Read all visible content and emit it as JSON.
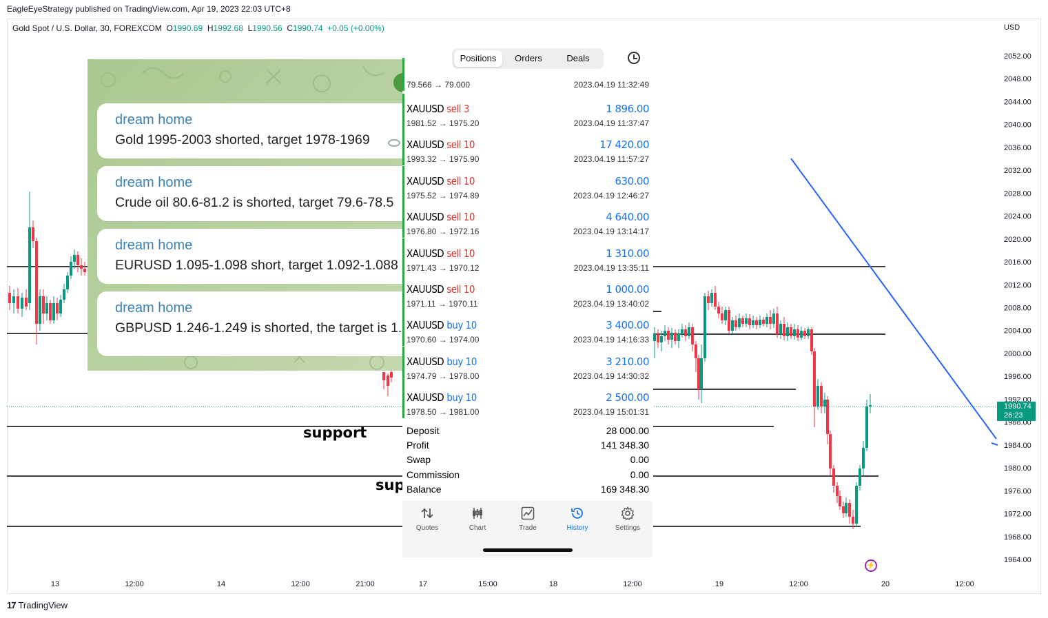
{
  "publish_note": "EagleEyeStrategy published on TradingView.com, Apr 19, 2023 22:03 UTC+8",
  "symbol": {
    "name": "Gold Spot / U.S. Dollar, 30, FOREXCOM",
    "o_label": "O",
    "o": "1990.69",
    "h_label": "H",
    "h": "1992.68",
    "l_label": "L",
    "l": "1990.56",
    "c_label": "C",
    "c": "1990.74",
    "change": "+0.05 (+0.00%)"
  },
  "currency": "USD",
  "price_axis": [
    "2052.00",
    "2048.00",
    "2044.00",
    "2040.00",
    "2036.00",
    "2032.00",
    "2028.00",
    "2024.00",
    "2020.00",
    "2016.00",
    "2012.00",
    "2008.00",
    "2004.00",
    "2000.00",
    "1996.00",
    "1992.00",
    "1988.00",
    "1984.00",
    "1980.00",
    "1976.00",
    "1972.00",
    "1968.00",
    "1964.00"
  ],
  "time_axis": [
    "13",
    "12:00",
    "14",
    "12:00",
    "21:00",
    "17",
    "15:00",
    "18",
    "12:00",
    "19",
    "12:00",
    "20",
    "12:00"
  ],
  "last_price": {
    "price": "1990.74",
    "countdown": "26:23"
  },
  "annotations": {
    "support_1": "support",
    "support_2": "sup"
  },
  "branding": {
    "logo_text": "TradingView",
    "logo_mark": "17"
  },
  "telegram": {
    "messages": [
      {
        "sender": "dream home",
        "text": "Gold 1995-2003 shorted, target 1978-1969"
      },
      {
        "sender": "dream home",
        "text": "Crude oil 80.6-81.2 is shorted, target 79.6-78.5"
      },
      {
        "sender": "dream home",
        "text": "EURUSD 1.095-1.098 short, target 1.092-1.088"
      },
      {
        "sender": "dream home",
        "text": "GBPUSD 1.246-1.249 is shorted, the target is 1."
      }
    ]
  },
  "mt5": {
    "tabs": [
      "Positions",
      "Orders",
      "Deals"
    ],
    "active_tab": "Positions",
    "partial_row": {
      "prices": "79.566 → 79.000",
      "time": "2023.04.19 11:32:49"
    },
    "deals": [
      {
        "symbol": "XAUUSD",
        "side": "sell",
        "qty": "3",
        "prices": "1981.52 → 1975.20",
        "profit": "1 896.00",
        "time": "2023.04.19 11:37:47"
      },
      {
        "symbol": "XAUUSD",
        "side": "sell",
        "qty": "10",
        "prices": "1993.32 → 1975.90",
        "profit": "17 420.00",
        "time": "2023.04.19 11:57:27"
      },
      {
        "symbol": "XAUUSD",
        "side": "sell",
        "qty": "10",
        "prices": "1975.52 → 1974.89",
        "profit": "630.00",
        "time": "2023.04.19 12:46:27"
      },
      {
        "symbol": "XAUUSD",
        "side": "sell",
        "qty": "10",
        "prices": "1976.80 → 1972.16",
        "profit": "4 640.00",
        "time": "2023.04.19 13:14:17"
      },
      {
        "symbol": "XAUUSD",
        "side": "sell",
        "qty": "10",
        "prices": "1971.43 → 1970.12",
        "profit": "1 310.00",
        "time": "2023.04.19 13:35:11"
      },
      {
        "symbol": "XAUUSD",
        "side": "sell",
        "qty": "10",
        "prices": "1971.11 → 1970.11",
        "profit": "1 000.00",
        "time": "2023.04.19 13:40:02"
      },
      {
        "symbol": "XAUUSD",
        "side": "buy",
        "qty": "10",
        "prices": "1970.60 → 1974.00",
        "profit": "3 400.00",
        "time": "2023.04.19 14:16:33"
      },
      {
        "symbol": "XAUUSD",
        "side": "buy",
        "qty": "10",
        "prices": "1974.79 → 1978.00",
        "profit": "3 210.00",
        "time": "2023.04.19 14:30:32"
      },
      {
        "symbol": "XAUUSD",
        "side": "buy",
        "qty": "10",
        "prices": "1978.50 → 1981.00",
        "profit": "2 500.00",
        "time": "2023.04.19 15:01:31"
      }
    ],
    "summary": [
      {
        "label": "Deposit",
        "value": "28 000.00"
      },
      {
        "label": "Profit",
        "value": "141 348.30"
      },
      {
        "label": "Swap",
        "value": "0.00"
      },
      {
        "label": "Commission",
        "value": "0.00"
      },
      {
        "label": "Balance",
        "value": "169 348.30"
      }
    ],
    "bottom_tabs": [
      {
        "label": "Quotes",
        "icon": "quotes-icon"
      },
      {
        "label": "Chart",
        "icon": "candles-icon"
      },
      {
        "label": "Trade",
        "icon": "trade-chart-icon"
      },
      {
        "label": "History",
        "icon": "history-icon"
      },
      {
        "label": "Settings",
        "icon": "gear-icon"
      }
    ],
    "active_bottom_tab": "History"
  },
  "colors": {
    "up": "#089981",
    "down": "#f23645",
    "sell": "#e0332a",
    "buy": "#1a73e8",
    "trendline": "#2962ff"
  }
}
